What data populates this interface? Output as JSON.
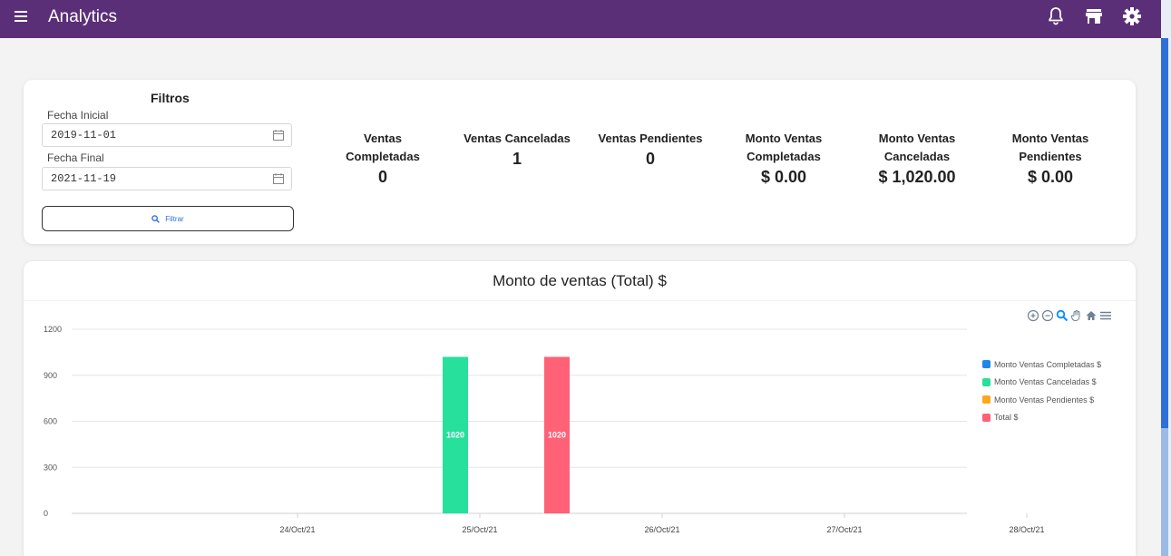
{
  "app": {
    "title": "Analytics"
  },
  "header_icons": [
    "menu-icon",
    "bell-icon",
    "store-icon",
    "gear-icon"
  ],
  "filters": {
    "title": "Filtros",
    "start_label": "Fecha Inicial",
    "start_value": "2019-11-01",
    "end_label": "Fecha Final",
    "end_value": "2021-11-19",
    "button_label": "Filtrar"
  },
  "stats": [
    {
      "label": "Ventas Completadas",
      "value": "0"
    },
    {
      "label": "Ventas Canceladas",
      "value": "1"
    },
    {
      "label": "Ventas Pendientes",
      "value": "0"
    },
    {
      "label": "Monto Ventas Completadas",
      "value": "$ 0.00"
    },
    {
      "label": "Monto Ventas Canceladas",
      "value": "$ 1,020.00"
    },
    {
      "label": "Monto Ventas Pendientes",
      "value": "$ 0.00"
    }
  ],
  "colors": {
    "header": "#5b2f78",
    "completadas": "#1e88e5",
    "canceladas": "#26e09c",
    "pendientes": "#fba919",
    "total": "#ff6177"
  },
  "chart_data": {
    "type": "bar",
    "title": "Monto de ventas (Total) $",
    "categories": [
      "24/Oct/21",
      "25/Oct/21",
      "26/Oct/21",
      "27/Oct/21",
      "28/Oct/21"
    ],
    "yticks": [
      "0",
      "300",
      "600",
      "900",
      "1200"
    ],
    "ylim": [
      0,
      1200
    ],
    "grid": true,
    "legend_position": "right",
    "toolbar_icons": [
      "zoom-in-icon",
      "zoom-out-icon",
      "magnify-icon",
      "pan-hand-icon",
      "home-icon",
      "menu-lines-icon"
    ],
    "series": [
      {
        "name": "Monto Ventas Completadas $",
        "color": "#1e88e5",
        "values": [
          0,
          0,
          0,
          0,
          0
        ]
      },
      {
        "name": "Monto Ventas Canceladas $",
        "color": "#26e09c",
        "values": [
          0,
          1020,
          0,
          0,
          0
        ]
      },
      {
        "name": "Monto Ventas Pendientes $",
        "color": "#fba919",
        "values": [
          0,
          0,
          0,
          0,
          0
        ]
      },
      {
        "name": "Total $",
        "color": "#ff6177",
        "values": [
          0,
          1020,
          0,
          0,
          0
        ]
      }
    ]
  }
}
